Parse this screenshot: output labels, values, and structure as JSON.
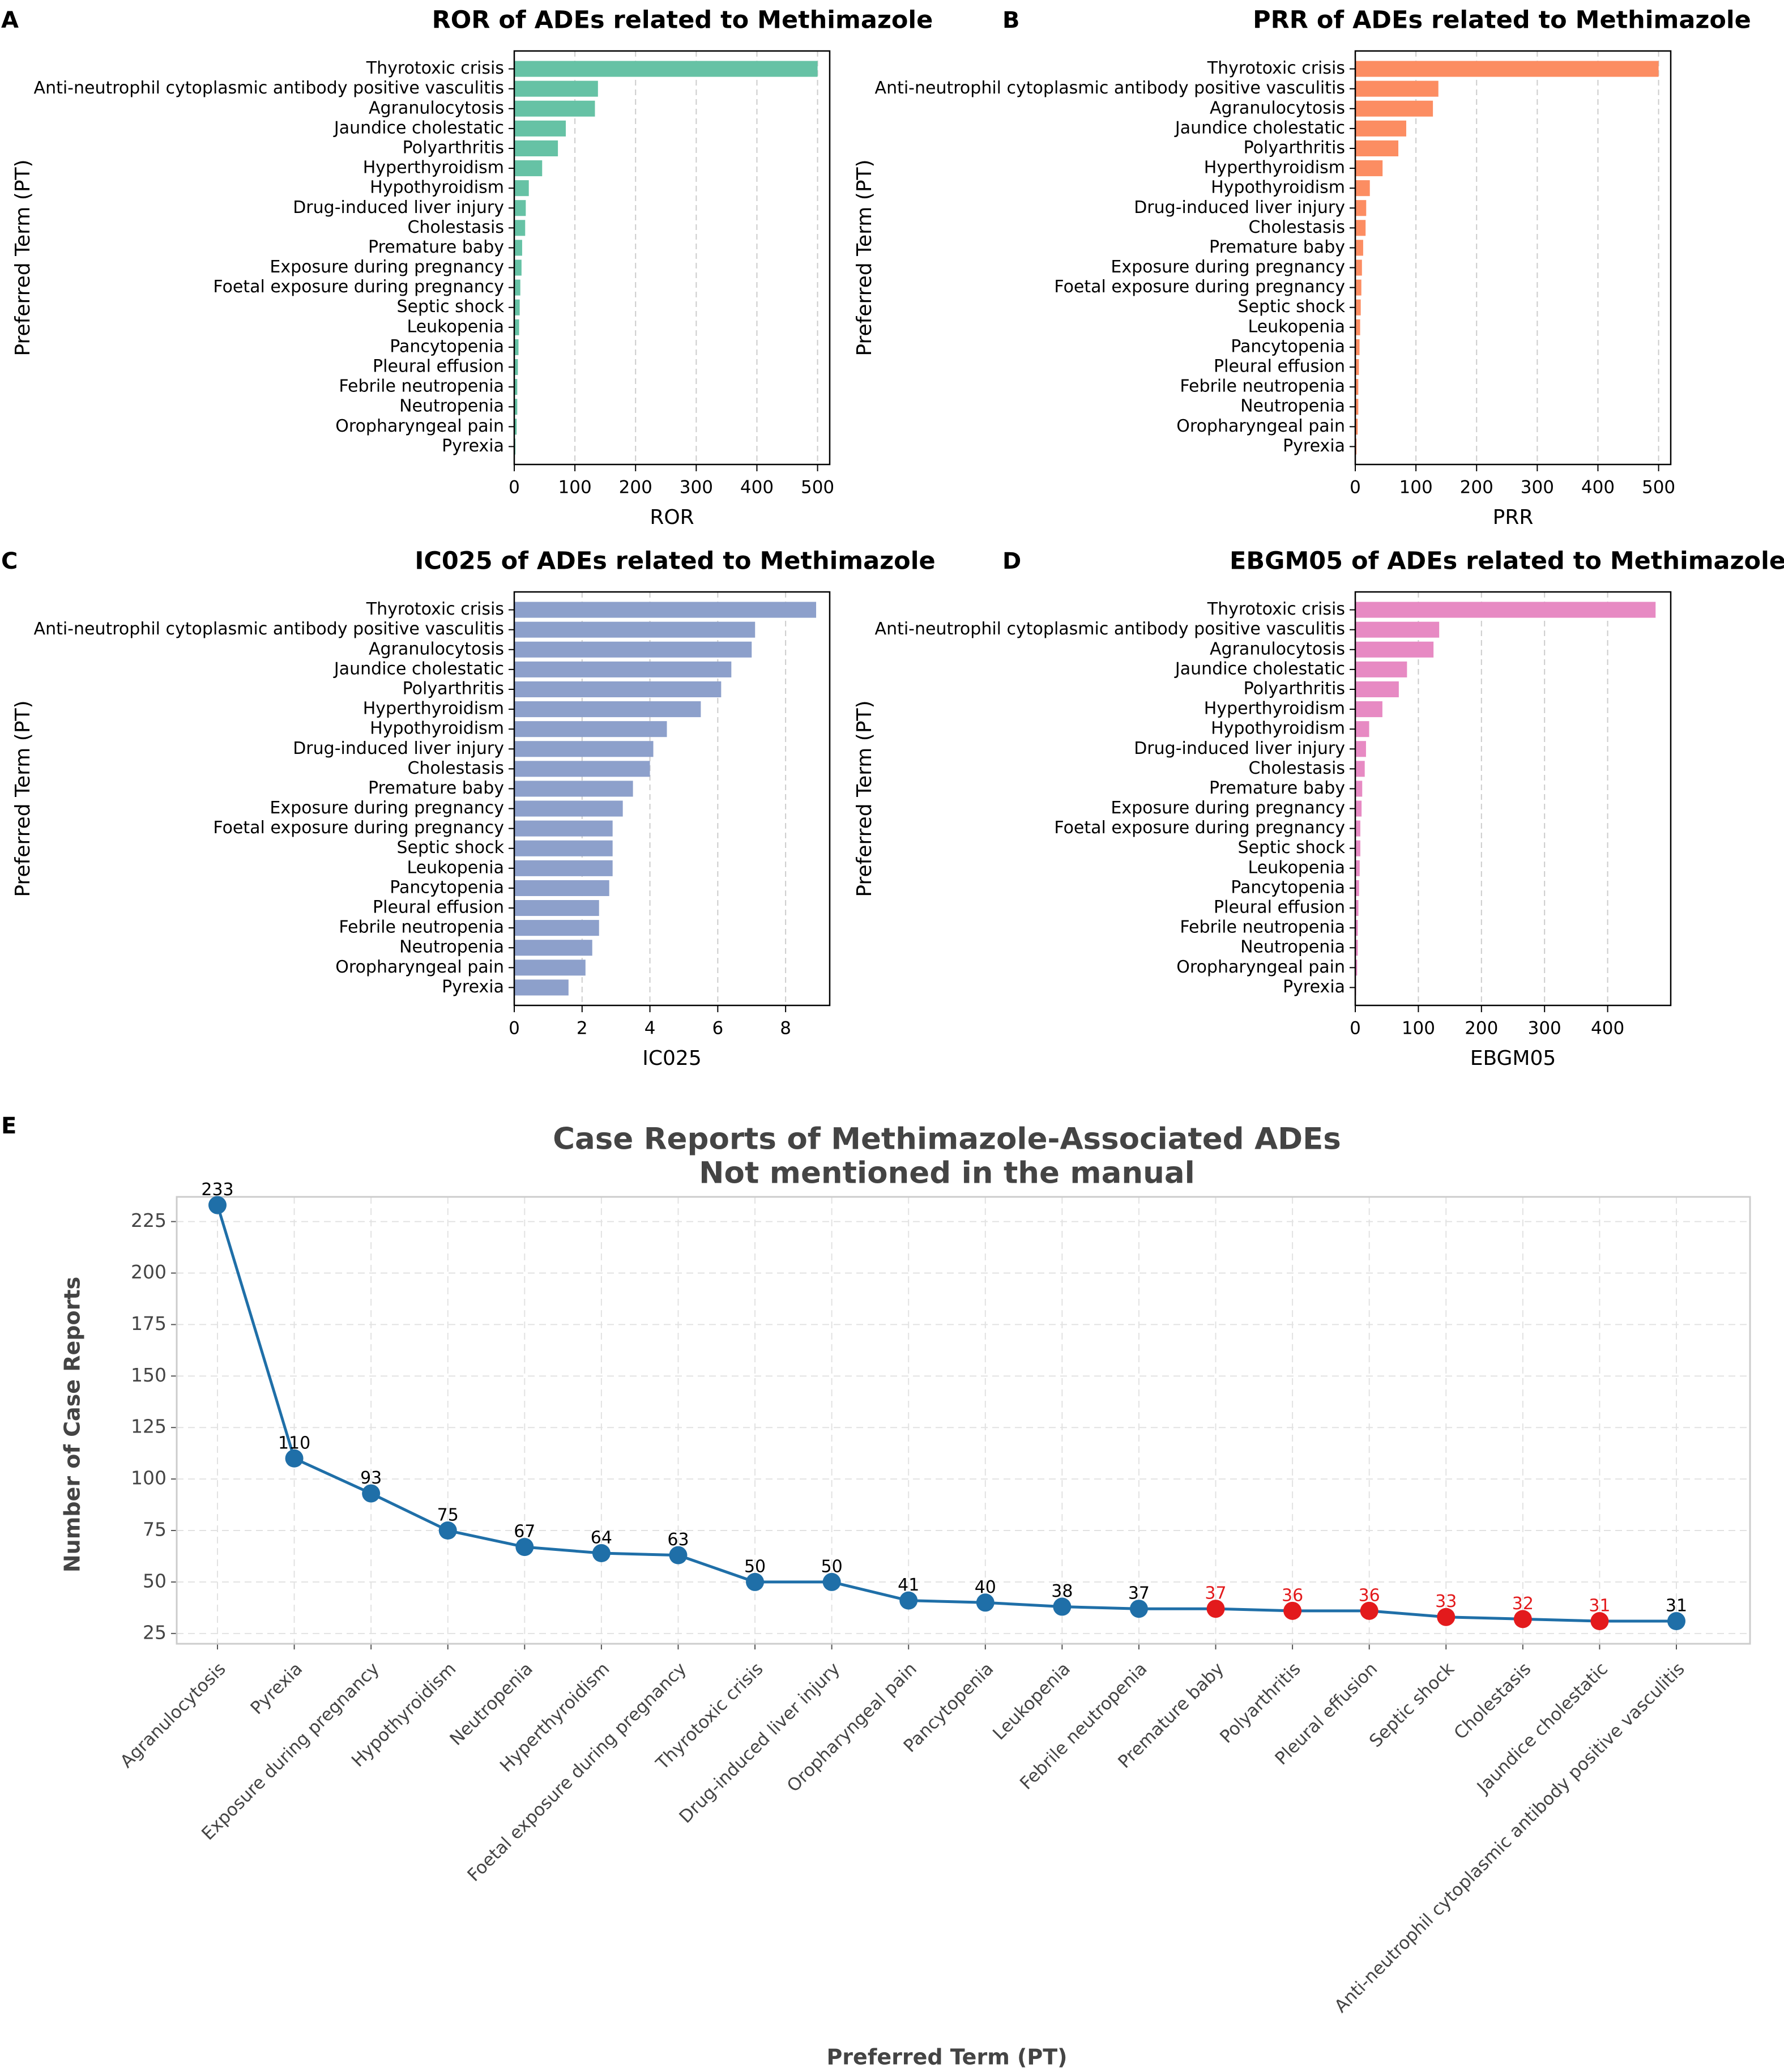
{
  "figure": {
    "panel_labels": [
      "A",
      "B",
      "C",
      "D",
      "E"
    ]
  },
  "terms": [
    "Thyrotoxic crisis",
    "Anti-neutrophil cytoplasmic antibody positive vasculitis",
    "Agranulocytosis",
    "Jaundice cholestatic",
    "Polyarthritis",
    "Hyperthyroidism",
    "Hypothyroidism",
    "Drug-induced liver injury",
    "Cholestasis",
    "Premature baby",
    "Exposure during pregnancy",
    "Foetal exposure during pregnancy",
    "Septic shock",
    "Leukopenia",
    "Pancytopenia",
    "Pleural effusion",
    "Febrile neutropenia",
    "Neutropenia",
    "Oropharyngeal pain",
    "Pyrexia"
  ],
  "colors": {
    "ror": "#66c2a5",
    "prr": "#fc8d62",
    "ic025": "#8da0cb",
    "ebgm05": "#e78ac3",
    "line": "#1f6fa8",
    "point_blue": "#1f6fa8",
    "point_red": "#e31a1c",
    "label_red": "#e31a1c",
    "title_grey": "#444444"
  },
  "chart_data": [
    {
      "type": "bar",
      "orientation": "horizontal",
      "panel": "A",
      "title": "ROR of ADEs related to Methimazole",
      "xlabel": "ROR",
      "ylabel": "Preferred Term (PT)",
      "xlim": [
        0,
        520
      ],
      "xticks": [
        0,
        100,
        200,
        300,
        400,
        500
      ],
      "grid": "x-dashed",
      "color_key": "ror",
      "values": [
        500,
        138,
        133,
        85,
        72,
        46,
        24,
        19,
        18,
        13,
        12,
        10,
        9,
        8,
        7,
        6,
        5,
        5,
        4,
        2
      ]
    },
    {
      "type": "bar",
      "orientation": "horizontal",
      "panel": "B",
      "title": "PRR of ADEs related to Methimazole",
      "xlabel": "PRR",
      "ylabel": "Preferred Term (PT)",
      "xlim": [
        0,
        520
      ],
      "xticks": [
        0,
        100,
        200,
        300,
        400,
        500
      ],
      "grid": "x-dashed",
      "color_key": "prr",
      "values": [
        500,
        137,
        128,
        84,
        71,
        45,
        24,
        18,
        17,
        13,
        11,
        10,
        9,
        8,
        7,
        6,
        5,
        5,
        4,
        2
      ]
    },
    {
      "type": "bar",
      "orientation": "horizontal",
      "panel": "C",
      "title": "IC025 of ADEs related to Methimazole",
      "xlabel": "IC025",
      "ylabel": "Preferred Term (PT)",
      "xlim": [
        0,
        9.3
      ],
      "xticks": [
        0,
        2,
        4,
        6,
        8
      ],
      "grid": "x-dashed",
      "color_key": "ic025",
      "values": [
        8.9,
        7.1,
        7.0,
        6.4,
        6.1,
        5.5,
        4.5,
        4.1,
        4.0,
        3.5,
        3.2,
        2.9,
        2.9,
        2.9,
        2.8,
        2.5,
        2.5,
        2.3,
        2.1,
        1.6
      ]
    },
    {
      "type": "bar",
      "orientation": "horizontal",
      "panel": "D",
      "title": "EBGM05 of ADEs related to Methimazole",
      "xlabel": "EBGM05",
      "ylabel": "Preferred Term (PT)",
      "xlim": [
        0,
        500
      ],
      "xticks": [
        0,
        100,
        200,
        300,
        400
      ],
      "grid": "x-dashed",
      "color_key": "ebgm05",
      "values": [
        476,
        133,
        124,
        82,
        69,
        43,
        22,
        17,
        15,
        11,
        10,
        8,
        8,
        7,
        6,
        5,
        4,
        4,
        3,
        1
      ]
    },
    {
      "type": "line",
      "panel": "E",
      "title": [
        "Case Reports of Methimazole-Associated ADEs",
        "Not mentioned in the manual"
      ],
      "xlabel": "Preferred Term (PT)",
      "ylabel": "Number of Case Reports",
      "ylim": [
        20,
        237
      ],
      "yticks": [
        25,
        50,
        75,
        100,
        125,
        150,
        175,
        200,
        225
      ],
      "grid": "both-dashed",
      "categories": [
        "Agranulocytosis",
        "Pyrexia",
        "Exposure during pregnancy",
        "Hypothyroidism",
        "Neutropenia",
        "Hyperthyroidism",
        "Foetal exposure during pregnancy",
        "Thyrotoxic crisis",
        "Drug-induced liver injury",
        "Oropharyngeal pain",
        "Pancytopenia",
        "Leukopenia",
        "Febrile neutropenia",
        "Premature baby",
        "Polyarthritis",
        "Pleural effusion",
        "Septic shock",
        "Cholestasis",
        "Jaundice cholestatic",
        "Anti-neutrophil cytoplasmic antibody positive vasculitis"
      ],
      "values": [
        233,
        110,
        93,
        75,
        67,
        64,
        63,
        50,
        50,
        41,
        40,
        38,
        37,
        37,
        36,
        36,
        33,
        32,
        31,
        31
      ],
      "labels": [
        "233",
        "110",
        "93",
        "75",
        "67",
        "64",
        "63",
        "50",
        "50",
        "41",
        "40",
        "38",
        "37",
        "37",
        "36",
        "36",
        "33",
        "32",
        "31",
        "31"
      ],
      "highlight": [
        false,
        false,
        false,
        false,
        false,
        false,
        false,
        false,
        false,
        false,
        false,
        false,
        false,
        true,
        true,
        true,
        true,
        true,
        true,
        false
      ]
    }
  ]
}
